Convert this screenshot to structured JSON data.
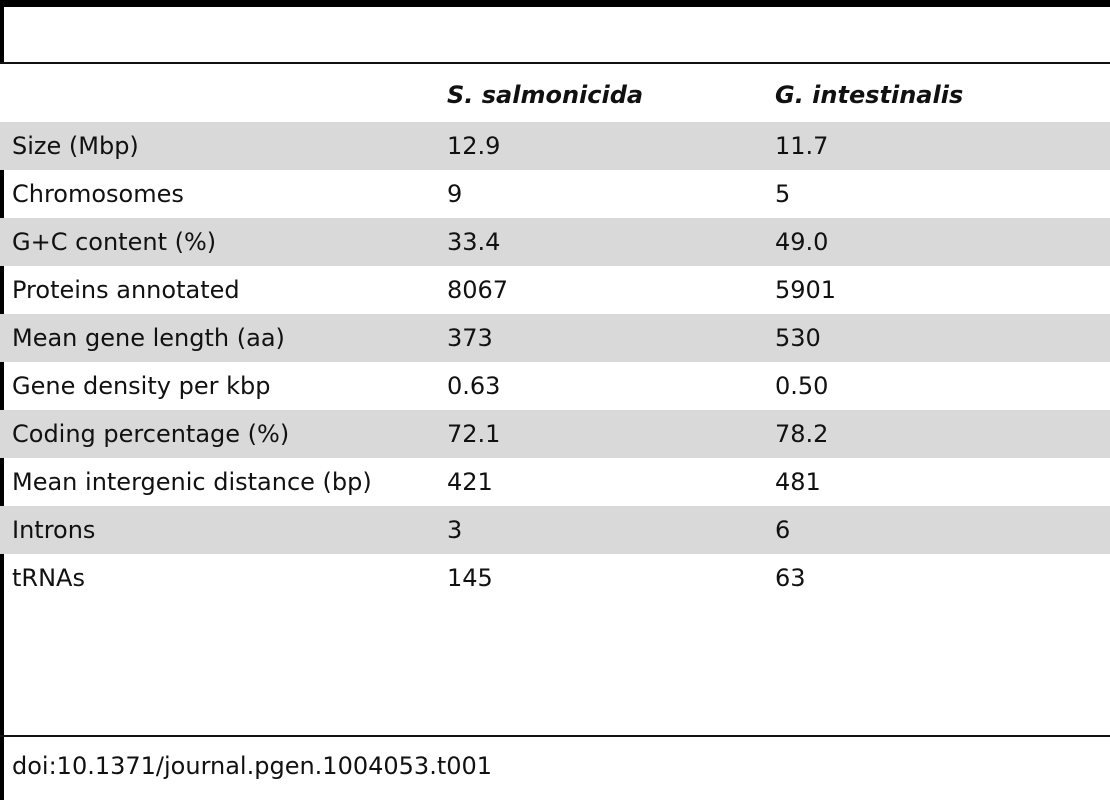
{
  "table": {
    "columns": [
      "",
      "S. salmonicida",
      "G. intestinalis"
    ],
    "rows": [
      {
        "label": "Size (Mbp)",
        "s_salmonicida": "12.9",
        "g_intestinalis": "11.7"
      },
      {
        "label": "Chromosomes",
        "s_salmonicida": "9",
        "g_intestinalis": "5"
      },
      {
        "label": "G+C content (%)",
        "s_salmonicida": "33.4",
        "g_intestinalis": "49.0"
      },
      {
        "label": "Proteins annotated",
        "s_salmonicida": "8067",
        "g_intestinalis": "5901"
      },
      {
        "label": "Mean gene length (aa)",
        "s_salmonicida": "373",
        "g_intestinalis": "530"
      },
      {
        "label": "Gene density per kbp",
        "s_salmonicida": "0.63",
        "g_intestinalis": "0.50"
      },
      {
        "label": "Coding percentage (%)",
        "s_salmonicida": "72.1",
        "g_intestinalis": "78.2"
      },
      {
        "label": "Mean intergenic distance (bp)",
        "s_salmonicida": "421",
        "g_intestinalis": "481"
      },
      {
        "label": "Introns",
        "s_salmonicida": "3",
        "g_intestinalis": "6"
      },
      {
        "label": "tRNAs",
        "s_salmonicida": "145",
        "g_intestinalis": "63"
      }
    ],
    "shaded_color": "#d9d9d9"
  },
  "footer": {
    "doi": "doi:10.1371/journal.pgen.1004053.t001"
  }
}
